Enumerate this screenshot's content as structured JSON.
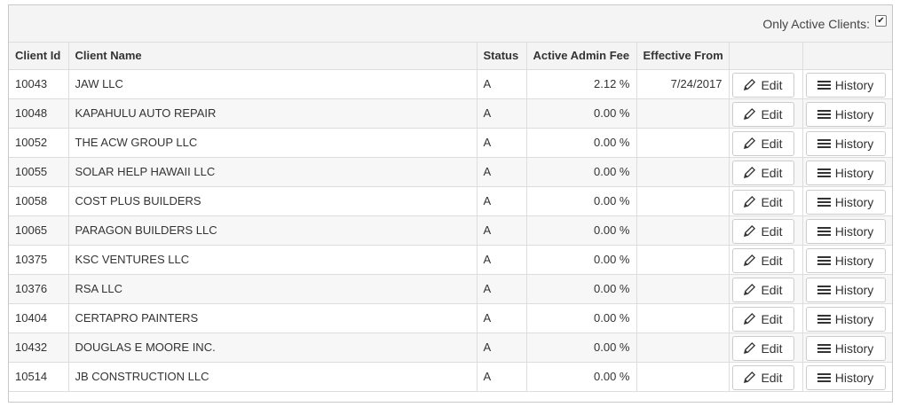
{
  "filter": {
    "label": "Only Active Clients:",
    "checked": true
  },
  "table": {
    "headers": {
      "client_id": "Client Id",
      "client_name": "Client Name",
      "status": "Status",
      "fee": "Active Admin Fee",
      "effective": "Effective From"
    },
    "edit_label": "Edit",
    "history_label": "History",
    "rows": [
      {
        "id": "10043",
        "name": "JAW LLC",
        "status": "A",
        "fee": "2.12 %",
        "effective": "7/24/2017"
      },
      {
        "id": "10048",
        "name": "KAPAHULU AUTO REPAIR",
        "status": "A",
        "fee": "0.00 %",
        "effective": ""
      },
      {
        "id": "10052",
        "name": "THE ACW GROUP LLC",
        "status": "A",
        "fee": "0.00 %",
        "effective": ""
      },
      {
        "id": "10055",
        "name": "SOLAR HELP HAWAII LLC",
        "status": "A",
        "fee": "0.00 %",
        "effective": ""
      },
      {
        "id": "10058",
        "name": "COST PLUS BUILDERS",
        "status": "A",
        "fee": "0.00 %",
        "effective": ""
      },
      {
        "id": "10065",
        "name": "PARAGON BUILDERS LLC",
        "status": "A",
        "fee": "0.00 %",
        "effective": ""
      },
      {
        "id": "10375",
        "name": "KSC VENTURES LLC",
        "status": "A",
        "fee": "0.00 %",
        "effective": ""
      },
      {
        "id": "10376",
        "name": "RSA LLC",
        "status": "A",
        "fee": "0.00 %",
        "effective": ""
      },
      {
        "id": "10404",
        "name": "CERTAPRO PAINTERS",
        "status": "A",
        "fee": "0.00 %",
        "effective": ""
      },
      {
        "id": "10432",
        "name": "DOUGLAS E MOORE INC.",
        "status": "A",
        "fee": "0.00 %",
        "effective": ""
      },
      {
        "id": "10514",
        "name": "JB CONSTRUCTION LLC",
        "status": "A",
        "fee": "0.00 %",
        "effective": ""
      }
    ]
  }
}
